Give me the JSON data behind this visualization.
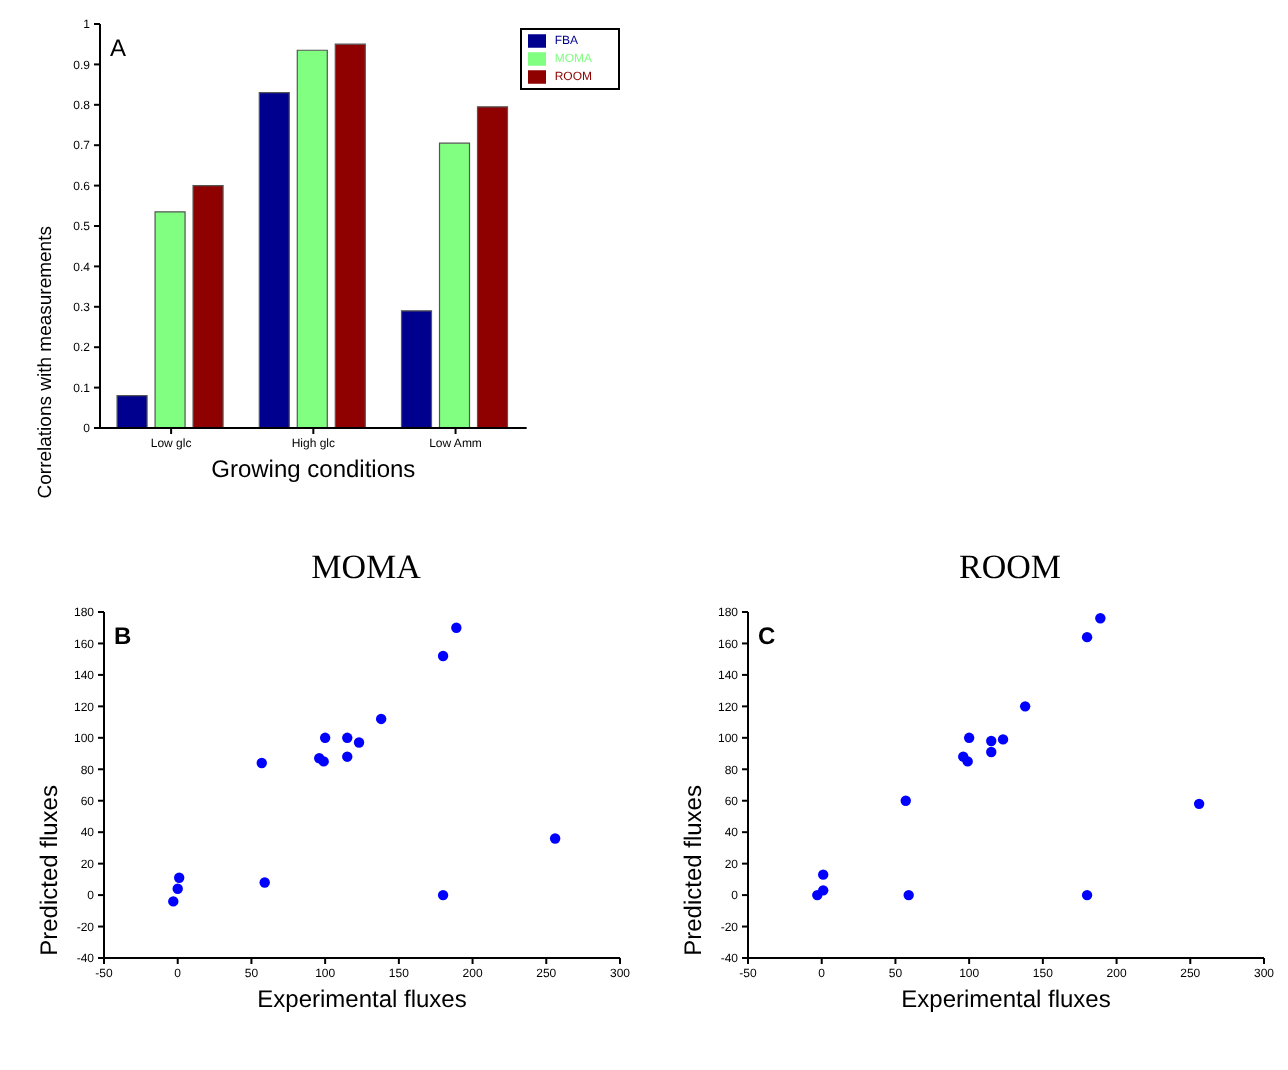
{
  "chart_data": [
    {
      "type": "bar",
      "categories": [
        "Low glc",
        "High glc",
        "Low Amm"
      ],
      "xlabel": "Growing conditions",
      "ylabel": "Correlations with measurements",
      "annotations": [
        "A"
      ],
      "ylim": [
        0,
        1
      ],
      "yticks": [
        0,
        0.1,
        0.2,
        0.3,
        0.4,
        0.5,
        0.6,
        0.7,
        0.8,
        0.9,
        1
      ],
      "legend": "top right",
      "grid": false,
      "series": [
        {
          "name": "FBA",
          "color": "#00008f",
          "values": [
            0.08,
            0.83,
            0.29
          ]
        },
        {
          "name": "MOMA",
          "color": "#80ff80",
          "values": [
            0.535,
            0.935,
            0.705
          ]
        },
        {
          "name": "ROOM",
          "color": "#8f0000",
          "values": [
            0.6,
            0.95,
            0.795
          ]
        }
      ]
    },
    {
      "type": "scatter",
      "title": "MOMA",
      "xlabel": "Experimental fluxes",
      "ylabel": "Predicted fluxes",
      "annotations": [
        "B"
      ],
      "xlim": [
        -50,
        300
      ],
      "xticks": [
        -50,
        0,
        50,
        100,
        150,
        200,
        250,
        300
      ],
      "ylim": [
        -40,
        180
      ],
      "yticks": [
        -40,
        -20,
        0,
        20,
        40,
        60,
        80,
        100,
        120,
        140,
        160,
        180
      ],
      "grid": false,
      "legend": false,
      "marker": "circle",
      "series": [
        {
          "color": "#0000ff",
          "x": [
            -3,
            0,
            1,
            59,
            57,
            96,
            99,
            100,
            115,
            115,
            123,
            138,
            180,
            189,
            180,
            256
          ],
          "values": [
            -4,
            4,
            11,
            8,
            84,
            87,
            85,
            100,
            100,
            88,
            97,
            112,
            152,
            170,
            0,
            36
          ]
        }
      ]
    },
    {
      "type": "scatter",
      "title": "ROOM",
      "xlabel": "Experimental fluxes",
      "ylabel": "Predicted fluxes",
      "annotations": [
        "C"
      ],
      "xlim": [
        -50,
        300
      ],
      "xticks": [
        -50,
        0,
        50,
        100,
        150,
        200,
        250,
        300
      ],
      "ylim": [
        -40,
        180
      ],
      "yticks": [
        -40,
        -20,
        0,
        20,
        40,
        60,
        80,
        100,
        120,
        140,
        160,
        180
      ],
      "grid": false,
      "legend": false,
      "marker": "circle",
      "series": [
        {
          "color": "#0000ff",
          "x": [
            -3,
            1,
            1,
            57,
            59,
            96,
            99,
            100,
            115,
            115,
            123,
            138,
            180,
            189,
            180,
            256
          ],
          "values": [
            0,
            3,
            13,
            60,
            0,
            88,
            85,
            100,
            98,
            91,
            99,
            120,
            164,
            176,
            0,
            58
          ]
        }
      ]
    }
  ]
}
